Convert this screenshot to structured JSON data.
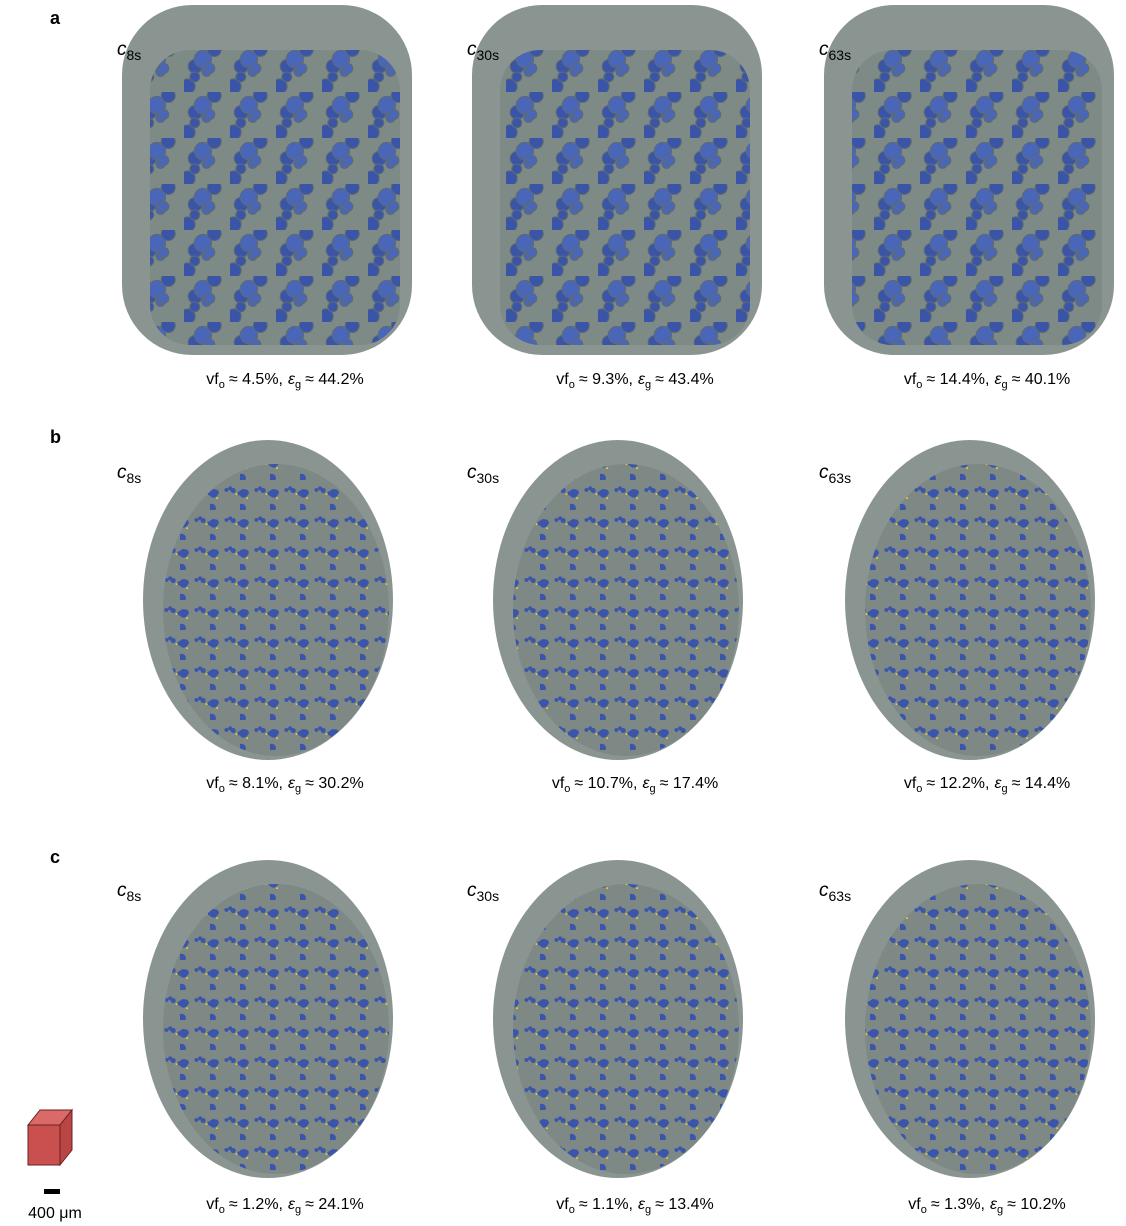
{
  "panels": [
    {
      "letter": "a",
      "images": [
        {
          "label": {
            "symbol": "c",
            "subscript": "8s"
          },
          "caption": {
            "vf": "vf",
            "vf_subscript": "o",
            "vf_value": "≈ 4.5%,",
            "eps": "ε",
            "eps_subscript": "g",
            "eps_value": "≈ 44.2%"
          }
        },
        {
          "label": {
            "symbol": "c",
            "subscript": "30s"
          },
          "caption": {
            "vf": "vf",
            "vf_subscript": "o",
            "vf_value": "≈ 9.3%,",
            "eps": "ε",
            "eps_subscript": "g",
            "eps_value": "≈ 43.4%"
          }
        },
        {
          "label": {
            "symbol": "c",
            "subscript": "63s"
          },
          "caption": {
            "vf": "vf",
            "vf_subscript": "o",
            "vf_value": "≈ 14.4%,",
            "eps": "ε",
            "eps_subscript": "g",
            "eps_value": "≈ 40.1%"
          }
        }
      ]
    },
    {
      "letter": "b",
      "images": [
        {
          "label": {
            "symbol": "c",
            "subscript": "8s"
          },
          "caption": {
            "vf": "vf",
            "vf_subscript": "o",
            "vf_value": "≈ 8.1%,",
            "eps": "ε",
            "eps_subscript": "g",
            "eps_value": "≈ 30.2%"
          }
        },
        {
          "label": {
            "symbol": "c",
            "subscript": "30s"
          },
          "caption": {
            "vf": "vf",
            "vf_subscript": "o",
            "vf_value": "≈ 10.7%,",
            "eps": "ε",
            "eps_subscript": "g",
            "eps_value": "≈ 17.4%"
          }
        },
        {
          "label": {
            "symbol": "c",
            "subscript": "63s"
          },
          "caption": {
            "vf": "vf",
            "vf_subscript": "o",
            "vf_value": "≈ 12.2%,",
            "eps": "ε",
            "eps_subscript": "g",
            "eps_value": "≈ 14.4%"
          }
        }
      ]
    },
    {
      "letter": "c",
      "images": [
        {
          "label": {
            "symbol": "c",
            "subscript": "8s"
          },
          "caption": {
            "vf": "vf",
            "vf_subscript": "o",
            "vf_value": "≈ 1.2%,",
            "eps": "ε",
            "eps_subscript": "g",
            "eps_value": "≈ 24.1%"
          }
        },
        {
          "label": {
            "symbol": "c",
            "subscript": "30s"
          },
          "caption": {
            "vf": "vf",
            "vf_subscript": "o",
            "vf_value": "≈ 1.1%,",
            "eps": "ε",
            "eps_subscript": "g",
            "eps_value": "≈ 13.4%"
          }
        },
        {
          "label": {
            "symbol": "c",
            "subscript": "63s"
          },
          "caption": {
            "vf": "vf",
            "vf_subscript": "o",
            "vf_value": "≈ 1.3%,",
            "eps": "ε",
            "eps_subscript": "g",
            "eps_value": "≈ 10.2%"
          }
        }
      ]
    }
  ],
  "scale_bar": {
    "label": "400 μm"
  }
}
